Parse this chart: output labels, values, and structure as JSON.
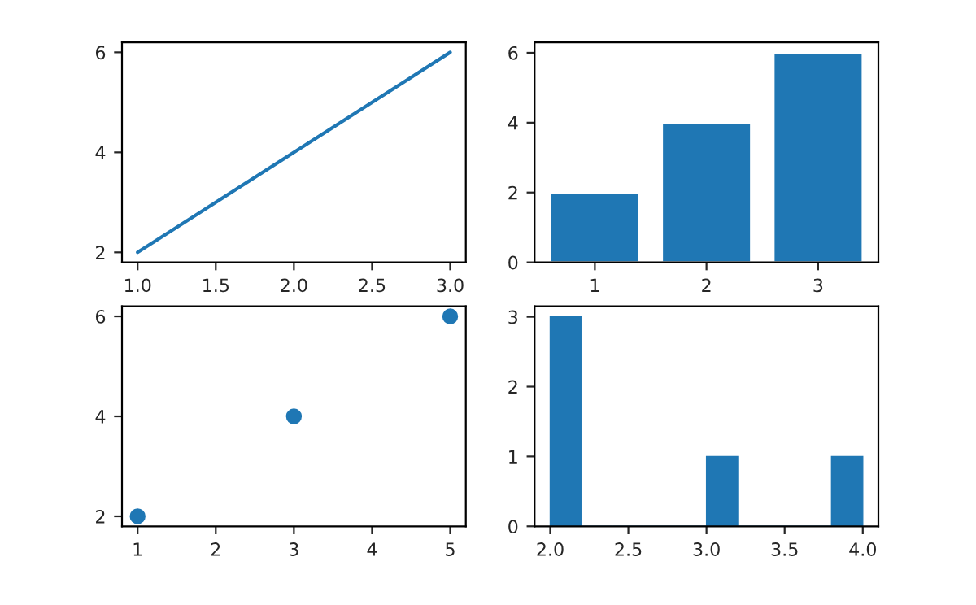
{
  "chart_data": [
    {
      "type": "line",
      "x": [
        1.0,
        3.0
      ],
      "values": [
        2,
        6
      ],
      "color": "#1f77b4",
      "xlim": [
        0.9,
        3.1
      ],
      "ylim": [
        1.8,
        6.2
      ],
      "xticks": [
        {
          "value": 1,
          "label": "1.0"
        },
        1.5,
        {
          "value": 2,
          "label": "2.0"
        },
        2.5,
        {
          "value": 3,
          "label": "3.0"
        }
      ],
      "yticks": [
        2,
        4,
        6
      ]
    },
    {
      "type": "bar",
      "categories": [
        "1",
        "2",
        "3"
      ],
      "values": [
        2,
        4,
        6
      ],
      "color": "#1f77b4",
      "ylim": [
        0,
        6.3
      ],
      "yticks": [
        0,
        2,
        4,
        6
      ]
    },
    {
      "type": "scatter",
      "x": [
        1,
        3,
        5
      ],
      "values": [
        2,
        4,
        6
      ],
      "color": "#1f77b4",
      "marker": "circle",
      "xlim": [
        0.8,
        5.2
      ],
      "ylim": [
        1.8,
        6.2
      ],
      "xticks": [
        1,
        2,
        3,
        4,
        5
      ],
      "yticks": [
        2,
        4,
        6
      ]
    },
    {
      "type": "histogram",
      "bins": [
        2.0,
        2.2,
        2.4,
        2.6,
        2.8,
        3.0,
        3.2,
        3.4,
        3.6,
        3.8,
        4.0
      ],
      "values": [
        3,
        0,
        0,
        0,
        0,
        1,
        0,
        0,
        0,
        1
      ],
      "color": "#1f77b4",
      "xlim": [
        1.9,
        4.1
      ],
      "ylim": [
        0,
        3.15
      ],
      "xticks": [
        {
          "value": 2,
          "label": "2.0"
        },
        2.5,
        {
          "value": 3,
          "label": "3.0"
        },
        3.5,
        {
          "value": 4,
          "label": "4.0"
        }
      ],
      "yticks": [
        0,
        1,
        2,
        3
      ]
    }
  ]
}
